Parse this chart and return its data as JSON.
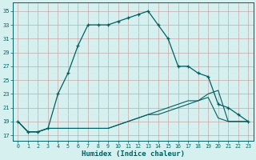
{
  "xlabel": "Humidex (Indice chaleur)",
  "bg_color": "#d6f0f0",
  "grid_major_color": "#c0e4e0",
  "grid_minor_color": "#d0ecec",
  "line_color": "#006060",
  "x_ticks": [
    0,
    1,
    2,
    3,
    4,
    5,
    6,
    7,
    8,
    9,
    10,
    11,
    12,
    13,
    14,
    15,
    16,
    17,
    18,
    19,
    20,
    21,
    22,
    23
  ],
  "y_ticks": [
    17,
    19,
    21,
    23,
    25,
    27,
    29,
    31,
    33,
    35
  ],
  "ylim": [
    16.2,
    36.2
  ],
  "xlim": [
    -0.5,
    23.5
  ],
  "series1_x": [
    0,
    1,
    2,
    3,
    4,
    5,
    6,
    7,
    8,
    9,
    10,
    11,
    12,
    13,
    14,
    15,
    16,
    17,
    18,
    19,
    20,
    21,
    22,
    23
  ],
  "series1_y": [
    19,
    17.5,
    17.5,
    18,
    23,
    26,
    30,
    33,
    33,
    33,
    33.5,
    34,
    34.5,
    35,
    33,
    31,
    27,
    27,
    26,
    25.5,
    21.5,
    21,
    20,
    19
  ],
  "series2_x": [
    0,
    1,
    2,
    3,
    4,
    5,
    6,
    7,
    8,
    9,
    10,
    11,
    12,
    13,
    14,
    15,
    16,
    17,
    18,
    19,
    20,
    21,
    22,
    23
  ],
  "series2_y": [
    19,
    17.5,
    17.5,
    18,
    18,
    18,
    18,
    18,
    18,
    18,
    18.5,
    19,
    19.5,
    20,
    20,
    20.5,
    21,
    21.5,
    22,
    23,
    23.5,
    19,
    19,
    19
  ],
  "series3_x": [
    0,
    1,
    2,
    3,
    4,
    5,
    6,
    7,
    8,
    9,
    10,
    11,
    12,
    13,
    14,
    15,
    16,
    17,
    18,
    19,
    20,
    21,
    22,
    23
  ],
  "series3_y": [
    19,
    17.5,
    17.5,
    18,
    18,
    18,
    18,
    18,
    18,
    18,
    18.5,
    19,
    19.5,
    20,
    20.5,
    21,
    21.5,
    22,
    22,
    22.5,
    19.5,
    19,
    19,
    19
  ]
}
